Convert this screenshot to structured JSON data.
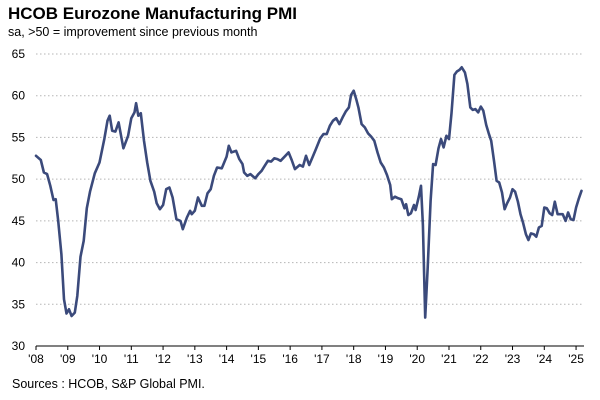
{
  "title": "HCOB Eurozone Manufacturing PMI",
  "subtitle": "sa, >50 = improvement  since previous month",
  "source": "Sources : HCOB, S&P Global PMI.",
  "chart_data": {
    "type": "line",
    "title": "HCOB Eurozone Manufacturing PMI",
    "subtitle": "sa, >50 = improvement  since previous month",
    "xlabel": "",
    "ylabel": "",
    "ylim": [
      30,
      65
    ],
    "yticks": [
      30,
      35,
      40,
      45,
      50,
      55,
      60,
      65
    ],
    "xlim": [
      2008.0,
      2025.25
    ],
    "xticks": [
      {
        "value": 2008,
        "label": "'08"
      },
      {
        "value": 2009,
        "label": "'09"
      },
      {
        "value": 2010,
        "label": "'10"
      },
      {
        "value": 2011,
        "label": "'11"
      },
      {
        "value": 2012,
        "label": "'12"
      },
      {
        "value": 2013,
        "label": "'13"
      },
      {
        "value": 2014,
        "label": "'14"
      },
      {
        "value": 2015,
        "label": "'15"
      },
      {
        "value": 2016,
        "label": "'16"
      },
      {
        "value": 2017,
        "label": "'17"
      },
      {
        "value": 2018,
        "label": "'18"
      },
      {
        "value": 2019,
        "label": "'19"
      },
      {
        "value": 2020,
        "label": "'20"
      },
      {
        "value": 2021,
        "label": "'21"
      },
      {
        "value": 2022,
        "label": "'22"
      },
      {
        "value": 2023,
        "label": "'23"
      },
      {
        "value": 2024,
        "label": "'24"
      },
      {
        "value": 2025,
        "label": "'25"
      }
    ],
    "grid": "horizontal dotted",
    "legend": "none",
    "series": [
      {
        "color": "#3b4a7b",
        "points": [
          [
            2008.0,
            52.8
          ],
          [
            2008.15,
            52.3
          ],
          [
            2008.25,
            50.8
          ],
          [
            2008.35,
            50.6
          ],
          [
            2008.45,
            49.2
          ],
          [
            2008.55,
            47.5
          ],
          [
            2008.62,
            47.6
          ],
          [
            2008.7,
            45.0
          ],
          [
            2008.8,
            41.0
          ],
          [
            2008.88,
            35.6
          ],
          [
            2008.96,
            33.9
          ],
          [
            2009.04,
            34.4
          ],
          [
            2009.12,
            33.6
          ],
          [
            2009.22,
            34.0
          ],
          [
            2009.3,
            36.0
          ],
          [
            2009.4,
            40.7
          ],
          [
            2009.5,
            42.6
          ],
          [
            2009.6,
            46.5
          ],
          [
            2009.7,
            48.5
          ],
          [
            2009.85,
            50.7
          ],
          [
            2010.0,
            52.0
          ],
          [
            2010.15,
            54.8
          ],
          [
            2010.25,
            57.0
          ],
          [
            2010.32,
            57.6
          ],
          [
            2010.4,
            55.8
          ],
          [
            2010.5,
            55.7
          ],
          [
            2010.6,
            56.8
          ],
          [
            2010.75,
            53.7
          ],
          [
            2010.9,
            55.2
          ],
          [
            2011.0,
            57.3
          ],
          [
            2011.1,
            58.0
          ],
          [
            2011.15,
            59.1
          ],
          [
            2011.22,
            57.6
          ],
          [
            2011.3,
            57.9
          ],
          [
            2011.4,
            54.6
          ],
          [
            2011.5,
            52.0
          ],
          [
            2011.6,
            49.8
          ],
          [
            2011.72,
            48.5
          ],
          [
            2011.8,
            47.1
          ],
          [
            2011.9,
            46.4
          ],
          [
            2012.0,
            46.9
          ],
          [
            2012.1,
            48.8
          ],
          [
            2012.2,
            49.0
          ],
          [
            2012.3,
            47.8
          ],
          [
            2012.42,
            45.2
          ],
          [
            2012.55,
            45.0
          ],
          [
            2012.62,
            44.0
          ],
          [
            2012.75,
            45.4
          ],
          [
            2012.85,
            46.2
          ],
          [
            2012.9,
            45.8
          ],
          [
            2013.0,
            46.2
          ],
          [
            2013.1,
            47.8
          ],
          [
            2013.22,
            46.8
          ],
          [
            2013.3,
            46.8
          ],
          [
            2013.4,
            48.3
          ],
          [
            2013.5,
            48.8
          ],
          [
            2013.6,
            50.4
          ],
          [
            2013.7,
            51.4
          ],
          [
            2013.85,
            51.3
          ],
          [
            2014.0,
            52.7
          ],
          [
            2014.07,
            54.0
          ],
          [
            2014.15,
            53.2
          ],
          [
            2014.3,
            53.4
          ],
          [
            2014.4,
            52.4
          ],
          [
            2014.5,
            51.8
          ],
          [
            2014.55,
            50.8
          ],
          [
            2014.65,
            50.4
          ],
          [
            2014.75,
            50.6
          ],
          [
            2014.9,
            50.1
          ],
          [
            2015.0,
            50.6
          ],
          [
            2015.1,
            51.0
          ],
          [
            2015.2,
            51.6
          ],
          [
            2015.3,
            52.2
          ],
          [
            2015.4,
            52.1
          ],
          [
            2015.5,
            52.5
          ],
          [
            2015.6,
            52.4
          ],
          [
            2015.7,
            52.2
          ],
          [
            2015.85,
            52.8
          ],
          [
            2015.95,
            53.2
          ],
          [
            2016.05,
            52.3
          ],
          [
            2016.15,
            51.2
          ],
          [
            2016.3,
            51.7
          ],
          [
            2016.4,
            51.5
          ],
          [
            2016.5,
            52.8
          ],
          [
            2016.6,
            51.7
          ],
          [
            2016.7,
            52.6
          ],
          [
            2016.8,
            53.5
          ],
          [
            2016.95,
            54.9
          ],
          [
            2017.05,
            55.4
          ],
          [
            2017.15,
            55.4
          ],
          [
            2017.25,
            56.4
          ],
          [
            2017.35,
            57.0
          ],
          [
            2017.45,
            57.3
          ],
          [
            2017.55,
            56.6
          ],
          [
            2017.65,
            57.4
          ],
          [
            2017.75,
            58.1
          ],
          [
            2017.85,
            58.6
          ],
          [
            2017.92,
            60.1
          ],
          [
            2018.0,
            60.6
          ],
          [
            2018.08,
            59.6
          ],
          [
            2018.15,
            58.6
          ],
          [
            2018.25,
            56.6
          ],
          [
            2018.35,
            56.2
          ],
          [
            2018.45,
            55.5
          ],
          [
            2018.55,
            55.1
          ],
          [
            2018.65,
            54.6
          ],
          [
            2018.75,
            53.2
          ],
          [
            2018.85,
            52.0
          ],
          [
            2018.95,
            51.4
          ],
          [
            2019.05,
            50.5
          ],
          [
            2019.15,
            49.3
          ],
          [
            2019.2,
            47.6
          ],
          [
            2019.3,
            47.9
          ],
          [
            2019.4,
            47.7
          ],
          [
            2019.5,
            47.6
          ],
          [
            2019.6,
            46.5
          ],
          [
            2019.65,
            47.0
          ],
          [
            2019.72,
            45.7
          ],
          [
            2019.8,
            45.9
          ],
          [
            2019.9,
            46.9
          ],
          [
            2019.95,
            46.3
          ],
          [
            2020.05,
            47.9
          ],
          [
            2020.12,
            49.2
          ],
          [
            2020.18,
            44.5
          ],
          [
            2020.25,
            33.4
          ],
          [
            2020.33,
            39.4
          ],
          [
            2020.42,
            47.4
          ],
          [
            2020.5,
            51.8
          ],
          [
            2020.58,
            51.7
          ],
          [
            2020.67,
            53.7
          ],
          [
            2020.75,
            54.8
          ],
          [
            2020.83,
            53.8
          ],
          [
            2020.92,
            55.2
          ],
          [
            2021.0,
            54.8
          ],
          [
            2021.08,
            57.9
          ],
          [
            2021.17,
            62.5
          ],
          [
            2021.25,
            62.9
          ],
          [
            2021.33,
            63.1
          ],
          [
            2021.4,
            63.4
          ],
          [
            2021.5,
            62.8
          ],
          [
            2021.58,
            61.4
          ],
          [
            2021.67,
            58.6
          ],
          [
            2021.75,
            58.3
          ],
          [
            2021.83,
            58.4
          ],
          [
            2021.92,
            58.0
          ],
          [
            2022.0,
            58.7
          ],
          [
            2022.08,
            58.2
          ],
          [
            2022.17,
            56.5
          ],
          [
            2022.25,
            55.5
          ],
          [
            2022.33,
            54.6
          ],
          [
            2022.42,
            52.1
          ],
          [
            2022.5,
            49.8
          ],
          [
            2022.58,
            49.6
          ],
          [
            2022.67,
            48.4
          ],
          [
            2022.75,
            46.4
          ],
          [
            2022.83,
            47.1
          ],
          [
            2022.92,
            47.8
          ],
          [
            2023.0,
            48.8
          ],
          [
            2023.08,
            48.5
          ],
          [
            2023.17,
            47.3
          ],
          [
            2023.25,
            45.8
          ],
          [
            2023.33,
            44.8
          ],
          [
            2023.42,
            43.4
          ],
          [
            2023.5,
            42.7
          ],
          [
            2023.58,
            43.5
          ],
          [
            2023.67,
            43.4
          ],
          [
            2023.75,
            43.1
          ],
          [
            2023.83,
            44.2
          ],
          [
            2023.92,
            44.4
          ],
          [
            2024.0,
            46.6
          ],
          [
            2024.08,
            46.5
          ],
          [
            2024.17,
            45.9
          ],
          [
            2024.25,
            45.7
          ],
          [
            2024.33,
            47.3
          ],
          [
            2024.42,
            45.8
          ],
          [
            2024.5,
            45.8
          ],
          [
            2024.58,
            45.8
          ],
          [
            2024.67,
            45.0
          ],
          [
            2024.75,
            46.0
          ],
          [
            2024.83,
            45.2
          ],
          [
            2024.92,
            45.1
          ],
          [
            2025.0,
            46.6
          ],
          [
            2025.08,
            47.6
          ],
          [
            2025.17,
            48.6
          ]
        ]
      }
    ]
  }
}
